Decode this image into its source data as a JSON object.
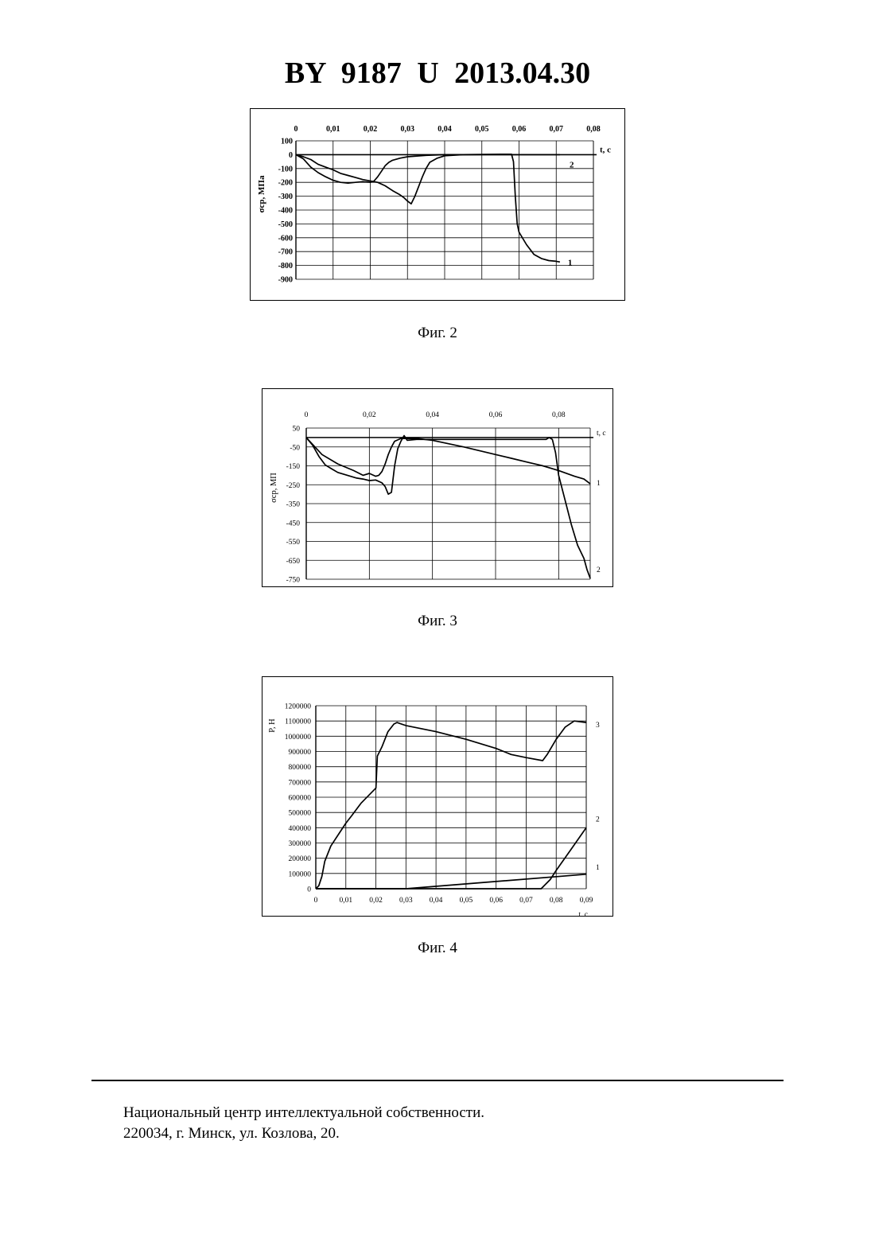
{
  "header": {
    "title": "BY  9187  U  2013.04.30"
  },
  "figures": [
    {
      "caption": "Фиг. 2"
    },
    {
      "caption": "Фиг. 3"
    },
    {
      "caption": "Фиг. 4"
    }
  ],
  "footer": {
    "line1": "Национальный центр интеллектуальной собственности.",
    "line2": "220034, г. Минск, ул. Козлова, 20."
  },
  "chart_data": [
    {
      "type": "line",
      "ylabel": "σср, МПа",
      "xlabel": "t, c",
      "x_ticks": [
        "0",
        "0,01",
        "0,02",
        "0,03",
        "0,04",
        "0,05",
        "0,06",
        "0,07",
        "0,08"
      ],
      "y_ticks": [
        "100",
        "0",
        "-100",
        "-200",
        "-300",
        "-400",
        "-500",
        "-600",
        "-700",
        "-800",
        "-900"
      ],
      "xlim": [
        0,
        0.08
      ],
      "ylim": [
        -900,
        100
      ],
      "x_axis_position": "top",
      "grid": true,
      "series": [
        {
          "name": "1",
          "points": [
            [
              0,
              0
            ],
            [
              0.002,
              -15
            ],
            [
              0.004,
              -35
            ],
            [
              0.006,
              -70
            ],
            [
              0.008,
              -90
            ],
            [
              0.01,
              -110
            ],
            [
              0.012,
              -135
            ],
            [
              0.014,
              -150
            ],
            [
              0.016,
              -165
            ],
            [
              0.018,
              -180
            ],
            [
              0.02,
              -190
            ],
            [
              0.022,
              -200
            ],
            [
              0.024,
              -225
            ],
            [
              0.026,
              -260
            ],
            [
              0.028,
              -290
            ],
            [
              0.029,
              -310
            ],
            [
              0.03,
              -335
            ],
            [
              0.031,
              -355
            ],
            [
              0.032,
              -300
            ],
            [
              0.033,
              -230
            ],
            [
              0.034,
              -160
            ],
            [
              0.035,
              -100
            ],
            [
              0.036,
              -55
            ],
            [
              0.038,
              -25
            ],
            [
              0.04,
              -8
            ],
            [
              0.045,
              0
            ],
            [
              0.05,
              2
            ],
            [
              0.055,
              3
            ],
            [
              0.058,
              3
            ],
            [
              0.0585,
              -50
            ],
            [
              0.059,
              -300
            ],
            [
              0.0595,
              -500
            ],
            [
              0.06,
              -560
            ],
            [
              0.062,
              -650
            ],
            [
              0.064,
              -720
            ],
            [
              0.066,
              -750
            ],
            [
              0.068,
              -765
            ],
            [
              0.07,
              -770
            ],
            [
              0.071,
              -775
            ]
          ]
        },
        {
          "name": "2",
          "points": [
            [
              0,
              0
            ],
            [
              0.002,
              -30
            ],
            [
              0.004,
              -90
            ],
            [
              0.006,
              -130
            ],
            [
              0.008,
              -160
            ],
            [
              0.01,
              -185
            ],
            [
              0.012,
              -200
            ],
            [
              0.014,
              -205
            ],
            [
              0.016,
              -200
            ],
            [
              0.018,
              -195
            ],
            [
              0.02,
              -200
            ],
            [
              0.021,
              -190
            ],
            [
              0.022,
              -160
            ],
            [
              0.023,
              -120
            ],
            [
              0.024,
              -80
            ],
            [
              0.025,
              -55
            ],
            [
              0.026,
              -40
            ],
            [
              0.028,
              -25
            ],
            [
              0.03,
              -15
            ],
            [
              0.035,
              -5
            ],
            [
              0.04,
              0
            ],
            [
              0.05,
              0
            ],
            [
              0.06,
              0
            ],
            [
              0.07,
              0
            ],
            [
              0.071,
              0
            ]
          ]
        }
      ]
    },
    {
      "type": "line",
      "ylabel": "σср, МП",
      "xlabel": "t, c",
      "x_ticks": [
        "0",
        "0,02",
        "0,04",
        "0,06",
        "0,08"
      ],
      "y_ticks": [
        "50",
        "-50",
        "-150",
        "-250",
        "-350",
        "-450",
        "-550",
        "-650",
        "-750"
      ],
      "xlim": [
        0,
        0.09
      ],
      "ylim": [
        -750,
        50
      ],
      "x_axis_position": "top",
      "grid": true,
      "series": [
        {
          "name": "1",
          "points": [
            [
              0,
              0
            ],
            [
              0.005,
              -90
            ],
            [
              0.01,
              -140
            ],
            [
              0.015,
              -175
            ],
            [
              0.018,
              -200
            ],
            [
              0.02,
              -190
            ],
            [
              0.022,
              -205
            ],
            [
              0.023,
              -200
            ],
            [
              0.024,
              -180
            ],
            [
              0.025,
              -140
            ],
            [
              0.026,
              -90
            ],
            [
              0.027,
              -50
            ],
            [
              0.028,
              -20
            ],
            [
              0.03,
              -5
            ],
            [
              0.035,
              -5
            ],
            [
              0.04,
              -15
            ],
            [
              0.05,
              -50
            ],
            [
              0.06,
              -90
            ],
            [
              0.065,
              -110
            ],
            [
              0.07,
              -130
            ],
            [
              0.075,
              -150
            ],
            [
              0.08,
              -175
            ],
            [
              0.085,
              -205
            ],
            [
              0.088,
              -220
            ],
            [
              0.09,
              -245
            ]
          ]
        },
        {
          "name": "2",
          "points": [
            [
              0,
              0
            ],
            [
              0.002,
              -40
            ],
            [
              0.004,
              -100
            ],
            [
              0.006,
              -145
            ],
            [
              0.008,
              -165
            ],
            [
              0.01,
              -185
            ],
            [
              0.012,
              -195
            ],
            [
              0.014,
              -205
            ],
            [
              0.016,
              -215
            ],
            [
              0.018,
              -220
            ],
            [
              0.02,
              -228
            ],
            [
              0.022,
              -225
            ],
            [
              0.024,
              -240
            ],
            [
              0.025,
              -260
            ],
            [
              0.026,
              -300
            ],
            [
              0.027,
              -290
            ],
            [
              0.028,
              -150
            ],
            [
              0.029,
              -60
            ],
            [
              0.03,
              -20
            ],
            [
              0.031,
              10
            ],
            [
              0.032,
              -15
            ],
            [
              0.035,
              -10
            ],
            [
              0.05,
              -10
            ],
            [
              0.07,
              -10
            ],
            [
              0.076,
              -10
            ],
            [
              0.077,
              0
            ],
            [
              0.078,
              -10
            ],
            [
              0.079,
              -80
            ],
            [
              0.08,
              -200
            ],
            [
              0.082,
              -330
            ],
            [
              0.084,
              -460
            ],
            [
              0.086,
              -570
            ],
            [
              0.088,
              -640
            ],
            [
              0.089,
              -700
            ],
            [
              0.09,
              -745
            ]
          ]
        }
      ]
    },
    {
      "type": "line",
      "ylabel": "P, Н",
      "xlabel": "t, c",
      "x_ticks": [
        "0",
        "0,01",
        "0,02",
        "0,03",
        "0,04",
        "0,05",
        "0,06",
        "0,07",
        "0,08",
        "0,09"
      ],
      "y_ticks": [
        "1200000",
        "1100000",
        "1000000",
        "900000",
        "800000",
        "700000",
        "600000",
        "500000",
        "400000",
        "300000",
        "200000",
        "100000",
        "0"
      ],
      "xlim": [
        0,
        0.09
      ],
      "ylim": [
        0,
        1200000
      ],
      "x_axis_position": "bottom",
      "grid": true,
      "series": [
        {
          "name": "1",
          "points": [
            [
              0,
              0
            ],
            [
              0.03,
              0
            ],
            [
              0.09,
              95000
            ]
          ]
        },
        {
          "name": "2",
          "points": [
            [
              0,
              0
            ],
            [
              0.075,
              0
            ],
            [
              0.078,
              60000
            ],
            [
              0.08,
              120000
            ],
            [
              0.085,
              260000
            ],
            [
              0.09,
              400000
            ]
          ]
        },
        {
          "name": "3",
          "points": [
            [
              0,
              0
            ],
            [
              0.001,
              20000
            ],
            [
              0.002,
              80000
            ],
            [
              0.003,
              180000
            ],
            [
              0.005,
              280000
            ],
            [
              0.008,
              370000
            ],
            [
              0.01,
              430000
            ],
            [
              0.012,
              480000
            ],
            [
              0.015,
              560000
            ],
            [
              0.018,
              620000
            ],
            [
              0.019,
              640000
            ],
            [
              0.02,
              660000
            ],
            [
              0.0205,
              870000
            ],
            [
              0.022,
              930000
            ],
            [
              0.024,
              1030000
            ],
            [
              0.026,
              1080000
            ],
            [
              0.027,
              1090000
            ],
            [
              0.03,
              1070000
            ],
            [
              0.04,
              1030000
            ],
            [
              0.05,
              980000
            ],
            [
              0.06,
              920000
            ],
            [
              0.065,
              880000
            ],
            [
              0.07,
              860000
            ],
            [
              0.0755,
              840000
            ],
            [
              0.077,
              880000
            ],
            [
              0.08,
              980000
            ],
            [
              0.083,
              1060000
            ],
            [
              0.086,
              1100000
            ],
            [
              0.09,
              1090000
            ]
          ]
        }
      ]
    }
  ]
}
